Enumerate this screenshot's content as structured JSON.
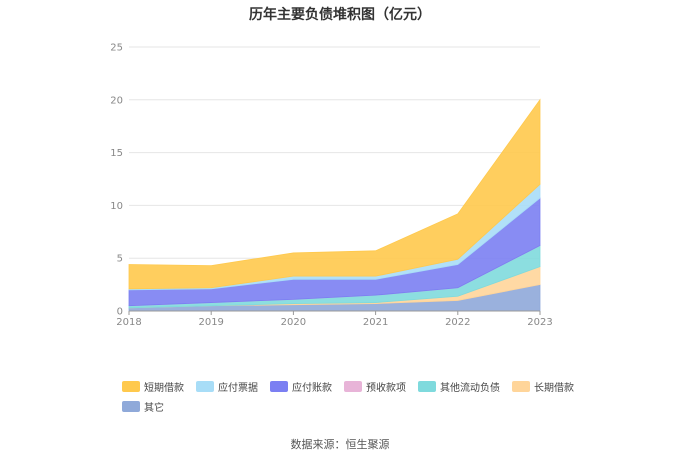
{
  "chart_data": {
    "type": "area",
    "stacked": true,
    "title": "历年主要负债堆积图（亿元）",
    "categories": [
      "2018",
      "2019",
      "2020",
      "2021",
      "2022",
      "2023"
    ],
    "y_ticks": [
      "0",
      "5",
      "10",
      "15",
      "20",
      "25"
    ],
    "ylim": [
      0,
      25
    ],
    "grid": true,
    "legend_position": "bottom",
    "series": [
      {
        "name": "其它",
        "color": "#8fa9d9",
        "values": [
          0.3,
          0.5,
          0.6,
          0.7,
          1.0,
          2.5
        ]
      },
      {
        "name": "长期借款",
        "color": "#ffd59a",
        "values": [
          0.0,
          0.0,
          0.1,
          0.1,
          0.4,
          1.7
        ]
      },
      {
        "name": "其他流动负债",
        "color": "#7fdadd",
        "values": [
          0.2,
          0.3,
          0.4,
          0.7,
          0.8,
          2.0
        ]
      },
      {
        "name": "预收款项",
        "color": "#e8b4d8",
        "values": [
          0.0,
          0.0,
          0.0,
          0.0,
          0.0,
          0.0
        ]
      },
      {
        "name": "应付账款",
        "color": "#7b7ff2",
        "values": [
          1.5,
          1.3,
          1.9,
          1.5,
          2.2,
          4.5
        ]
      },
      {
        "name": "应付票据",
        "color": "#a8ddf7",
        "values": [
          0.1,
          0.1,
          0.3,
          0.3,
          0.5,
          1.3
        ]
      },
      {
        "name": "短期借款",
        "color": "#ffc94d",
        "values": [
          2.3,
          2.1,
          2.2,
          2.4,
          4.3,
          8.0
        ]
      }
    ],
    "legend_order": [
      "短期借款",
      "应付票据",
      "应付账款",
      "预收款项",
      "其他流动负债",
      "长期借款",
      "其它"
    ]
  },
  "source_note": "数据来源：恒生聚源"
}
